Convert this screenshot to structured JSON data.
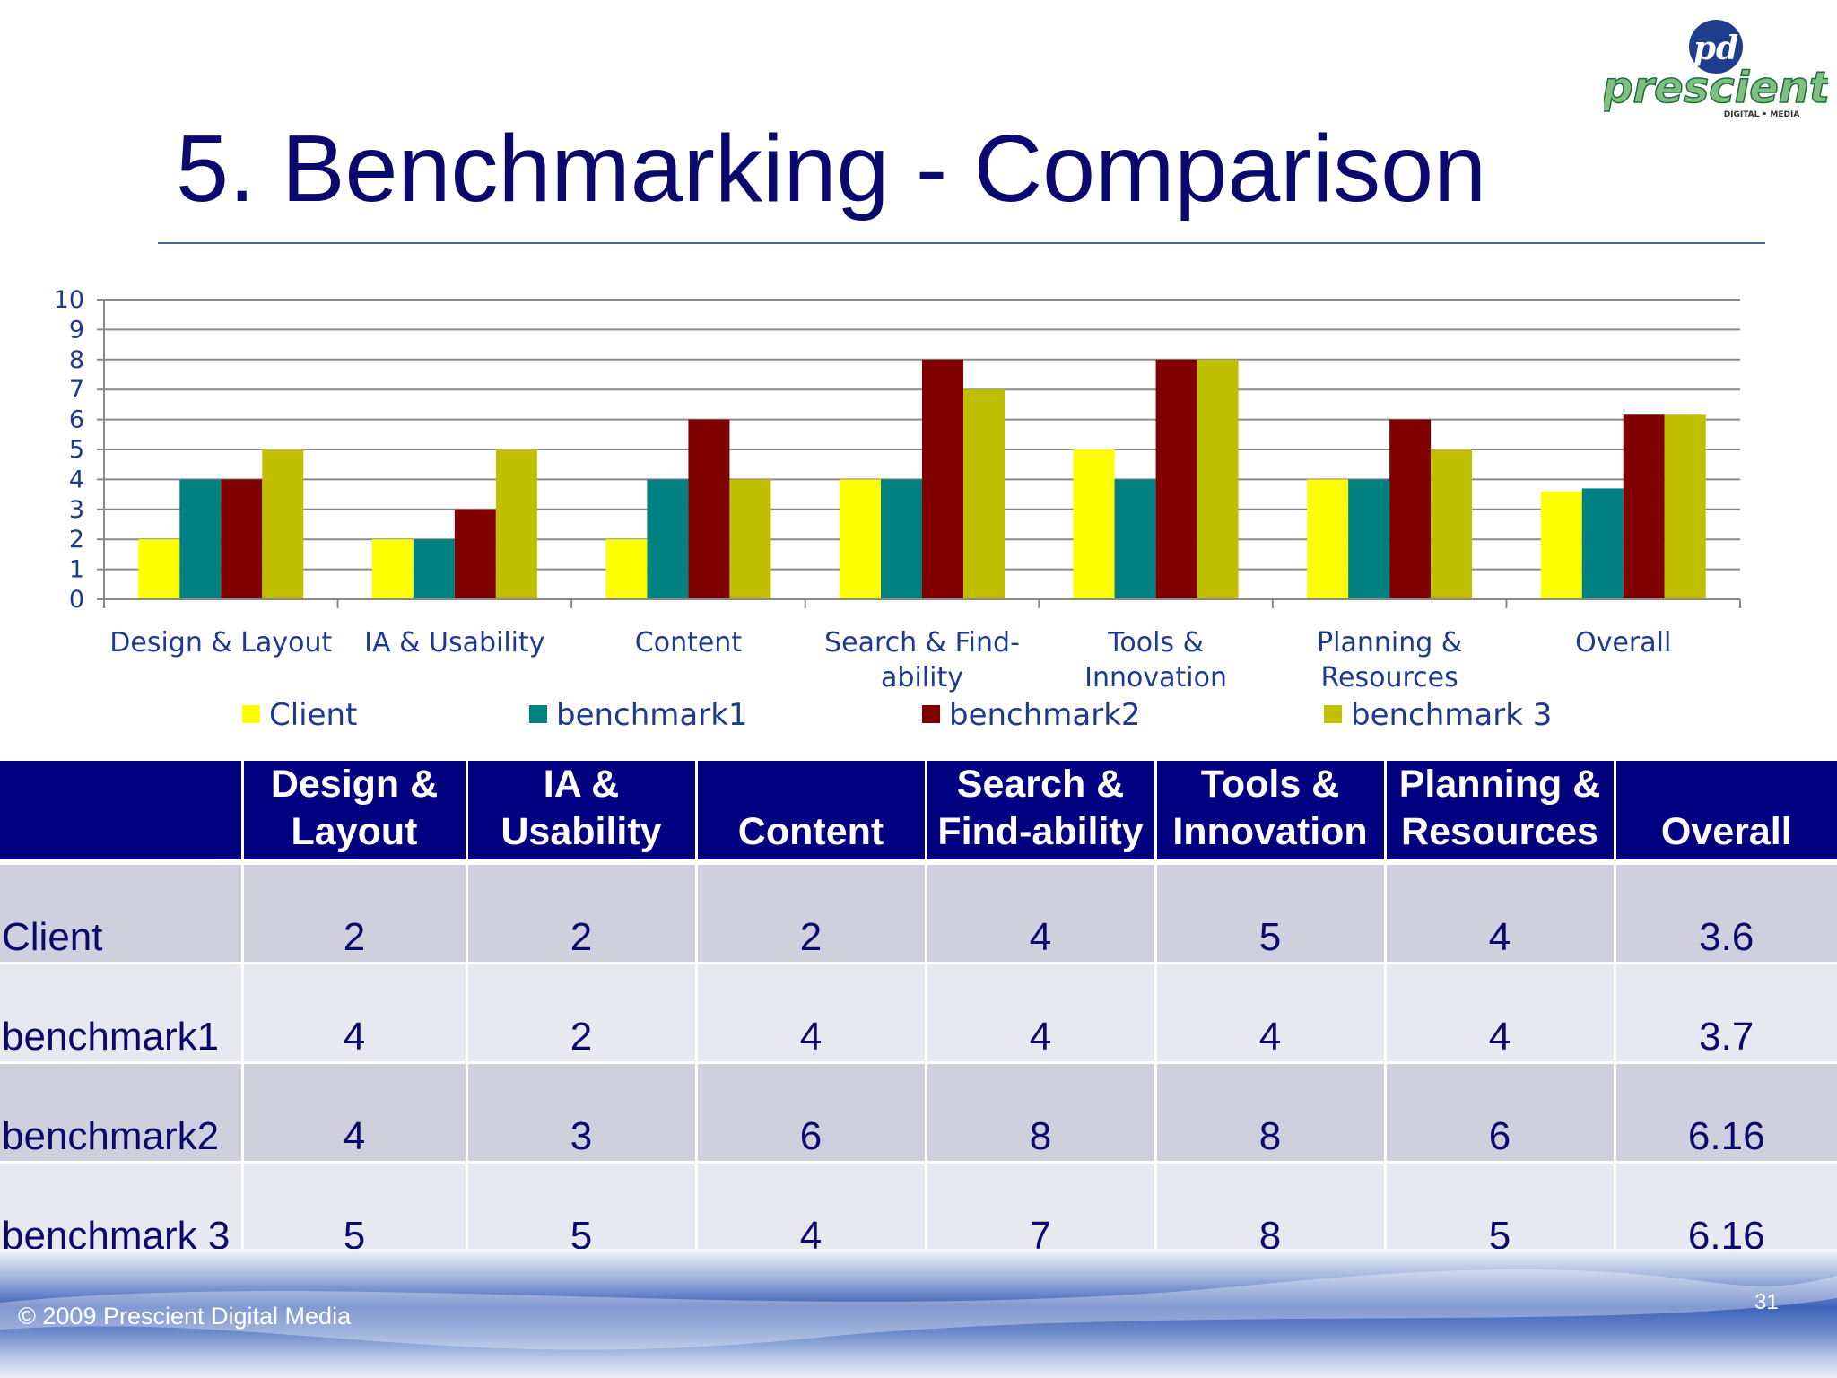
{
  "slide": {
    "title": "5. Benchmarking - Comparison",
    "copyright": "© 2009 Prescient Digital Media",
    "page_number": "31",
    "logo": {
      "mark": "pd",
      "name": "prescient",
      "tagline": "DIGITAL • MEDIA",
      "icon": "prescient-logo-icon"
    }
  },
  "chart_data": {
    "type": "bar",
    "categories": [
      "Design & Layout",
      "IA & Usability",
      "Content",
      "Search & Find-ability",
      "Tools & Innovation",
      "Planning & Resources",
      "Overall"
    ],
    "category_label_lines": [
      [
        "Design & Layout"
      ],
      [
        "IA & Usability"
      ],
      [
        "Content"
      ],
      [
        "Search & Find-",
        "ability"
      ],
      [
        "Tools &",
        "Innovation"
      ],
      [
        "Planning &",
        "Resources"
      ],
      [
        "Overall"
      ]
    ],
    "series": [
      {
        "name": "Client",
        "color": "#ffff00",
        "values": [
          2,
          2,
          2,
          4,
          5,
          4,
          3.6
        ]
      },
      {
        "name": "benchmark1",
        "color": "#008080",
        "values": [
          4,
          2,
          4,
          4,
          4,
          4,
          3.7
        ]
      },
      {
        "name": "benchmark2",
        "color": "#800000",
        "values": [
          4,
          3,
          6,
          8,
          8,
          6,
          6.16
        ]
      },
      {
        "name": "benchmark 3",
        "color": "#c0c000",
        "values": [
          5,
          5,
          4,
          7,
          8,
          5,
          6.16
        ]
      }
    ],
    "ylim": [
      0,
      10
    ],
    "yticks": [
      0,
      1,
      2,
      3,
      4,
      5,
      6,
      7,
      8,
      9,
      10
    ],
    "grid": true,
    "legend": "bottom"
  },
  "table": {
    "headers": [
      [
        "",
        ""
      ],
      [
        "Design &",
        "Layout"
      ],
      [
        "IA &",
        "Usability"
      ],
      [
        "",
        "Content"
      ],
      [
        "Search &",
        "Find-ability"
      ],
      [
        "Tools &",
        "Innovation"
      ],
      [
        "Planning &",
        "Resources"
      ],
      [
        "",
        "Overall"
      ]
    ],
    "rows": [
      [
        "Client",
        "2",
        "2",
        "2",
        "4",
        "5",
        "4",
        "3.6"
      ],
      [
        "benchmark1",
        "4",
        "2",
        "4",
        "4",
        "4",
        "4",
        "3.7"
      ],
      [
        "benchmark2",
        "4",
        "3",
        "6",
        "8",
        "8",
        "6",
        "6.16"
      ],
      [
        "benchmark 3",
        "5",
        "5",
        "4",
        "7",
        "8",
        "5",
        "6.16"
      ]
    ]
  }
}
